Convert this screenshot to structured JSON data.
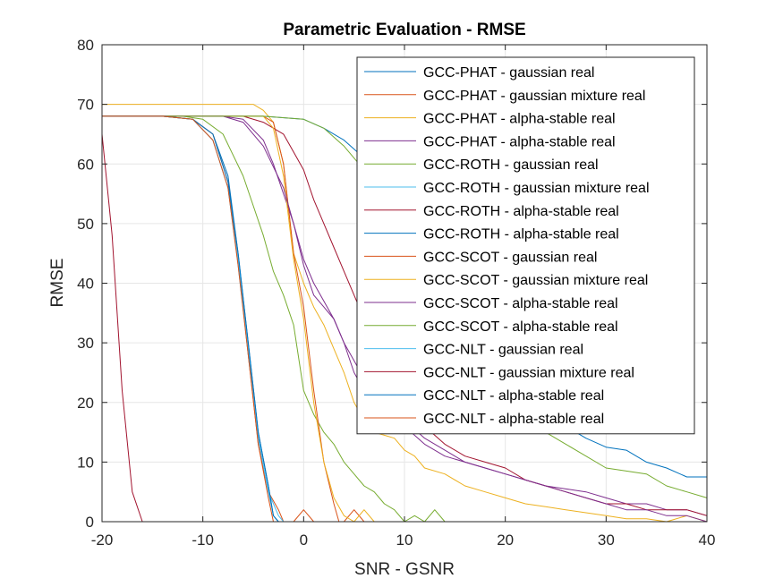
{
  "chart_data": {
    "type": "line",
    "title": "Parametric Evaluation - RMSE",
    "xlabel": "SNR - GSNR",
    "ylabel": "RMSE",
    "xlim": [
      -20,
      40
    ],
    "ylim": [
      0,
      80
    ],
    "xticks": [
      -20,
      -10,
      0,
      10,
      20,
      30,
      40
    ],
    "yticks": [
      0,
      10,
      20,
      30,
      40,
      50,
      60,
      70,
      80
    ],
    "grid": true,
    "legend_position": "top-right",
    "series": [
      {
        "name": "GCC-PHAT - gaussian real",
        "color": "#0072BD",
        "points": [
          [
            -20,
            68
          ],
          [
            -14,
            68
          ],
          [
            -11,
            67.5
          ],
          [
            -9,
            65
          ],
          [
            -7.5,
            58
          ],
          [
            -6.5,
            45
          ],
          [
            -5.5,
            30
          ],
          [
            -4.5,
            15
          ],
          [
            -3.5,
            6
          ],
          [
            -3,
            1
          ],
          [
            -2.5,
            0
          ],
          [
            40,
            0
          ]
        ]
      },
      {
        "name": "GCC-PHAT - gaussian mixture real",
        "color": "#D95319",
        "points": [
          [
            -20,
            68
          ],
          [
            -14,
            68
          ],
          [
            -11,
            67.5
          ],
          [
            -9,
            65
          ],
          [
            -7.5,
            57
          ],
          [
            -6.5,
            44
          ],
          [
            -5.5,
            28
          ],
          [
            -4.5,
            13
          ],
          [
            -3.5,
            5
          ],
          [
            -2.5,
            2
          ],
          [
            -2,
            0
          ],
          [
            -1,
            0
          ],
          [
            0,
            2
          ],
          [
            1,
            0
          ],
          [
            40,
            0
          ]
        ]
      },
      {
        "name": "GCC-PHAT - alpha-stable real",
        "color": "#EDB120",
        "points": [
          [
            -20,
            70
          ],
          [
            -5,
            70
          ],
          [
            -4,
            69
          ],
          [
            -3,
            67
          ],
          [
            -2,
            60
          ],
          [
            -1,
            45
          ],
          [
            0,
            40
          ],
          [
            1,
            36
          ],
          [
            2,
            33
          ],
          [
            3,
            29
          ],
          [
            4,
            25
          ],
          [
            5,
            20
          ],
          [
            6,
            17
          ],
          [
            7,
            15
          ],
          [
            8,
            14.5
          ],
          [
            9,
            14
          ],
          [
            10,
            12
          ],
          [
            11,
            11
          ],
          [
            12,
            9
          ],
          [
            14,
            8
          ],
          [
            16,
            6
          ],
          [
            18,
            5
          ],
          [
            20,
            4
          ],
          [
            22,
            3
          ],
          [
            24,
            2.5
          ],
          [
            26,
            2
          ],
          [
            28,
            1.5
          ],
          [
            30,
            1
          ],
          [
            32,
            0.5
          ],
          [
            34,
            0.5
          ],
          [
            36,
            0
          ],
          [
            38,
            1
          ],
          [
            40,
            0
          ]
        ]
      },
      {
        "name": "GCC-PHAT - alpha-stable real",
        "color": "#7E2F8E",
        "points": [
          [
            -20,
            68
          ],
          [
            -8,
            68
          ],
          [
            -6,
            67.5
          ],
          [
            -4,
            64
          ],
          [
            -3,
            60
          ],
          [
            -2,
            55
          ],
          [
            -1,
            50
          ],
          [
            0,
            43
          ],
          [
            1,
            38
          ],
          [
            2,
            36
          ],
          [
            3,
            34
          ],
          [
            4,
            30
          ],
          [
            5,
            25
          ],
          [
            6,
            22
          ],
          [
            7,
            20
          ],
          [
            8,
            18
          ],
          [
            10,
            16
          ],
          [
            12,
            13
          ],
          [
            14,
            11
          ],
          [
            16,
            10
          ],
          [
            18,
            9
          ],
          [
            20,
            8
          ],
          [
            22,
            7
          ],
          [
            24,
            6
          ],
          [
            26,
            5.5
          ],
          [
            28,
            5
          ],
          [
            30,
            4
          ],
          [
            32,
            3
          ],
          [
            34,
            3
          ],
          [
            36,
            2
          ],
          [
            38,
            2
          ],
          [
            40,
            1
          ]
        ]
      },
      {
        "name": "GCC-ROTH - gaussian real",
        "color": "#77AC30",
        "points": [
          [
            -20,
            68
          ],
          [
            -12,
            68
          ],
          [
            -10,
            67.5
          ],
          [
            -8,
            65
          ],
          [
            -6,
            58
          ],
          [
            -5,
            53
          ],
          [
            -4,
            48
          ],
          [
            -3,
            42
          ],
          [
            -2,
            38
          ],
          [
            -1,
            33
          ],
          [
            0,
            22
          ],
          [
            1,
            18
          ],
          [
            2,
            15
          ],
          [
            3,
            13
          ],
          [
            4,
            10
          ],
          [
            5,
            8
          ],
          [
            6,
            6
          ],
          [
            7,
            5
          ],
          [
            8,
            3
          ],
          [
            9,
            2
          ],
          [
            10,
            0
          ],
          [
            11,
            1
          ],
          [
            12,
            0
          ],
          [
            13,
            2
          ],
          [
            14,
            0
          ],
          [
            40,
            0
          ]
        ]
      },
      {
        "name": "GCC-ROTH - gaussian mixture real",
        "color": "#4DBEEE",
        "points": [
          [
            -20,
            68
          ],
          [
            -14,
            68
          ],
          [
            -11,
            67.5
          ],
          [
            -9,
            64
          ],
          [
            -7.5,
            56
          ],
          [
            -6.5,
            43
          ],
          [
            -5.5,
            28
          ],
          [
            -4.5,
            14
          ],
          [
            -3.5,
            5
          ],
          [
            -2.5,
            1
          ],
          [
            -2,
            0
          ],
          [
            40,
            0
          ]
        ]
      },
      {
        "name": "GCC-ROTH - alpha-stable real",
        "color": "#A2142F",
        "points": [
          [
            -20,
            68
          ],
          [
            -6,
            68
          ],
          [
            -4,
            67
          ],
          [
            -2,
            65
          ],
          [
            -1,
            62
          ],
          [
            0,
            59
          ],
          [
            1,
            54
          ],
          [
            2,
            50
          ],
          [
            3,
            46
          ],
          [
            4,
            42
          ],
          [
            5,
            38
          ],
          [
            6,
            34
          ],
          [
            7,
            30
          ],
          [
            8,
            26
          ],
          [
            9,
            23
          ],
          [
            10,
            20
          ],
          [
            12,
            16
          ],
          [
            14,
            13
          ],
          [
            16,
            11
          ],
          [
            18,
            10
          ],
          [
            20,
            9
          ],
          [
            22,
            7
          ],
          [
            24,
            6
          ],
          [
            26,
            5
          ],
          [
            28,
            4
          ],
          [
            30,
            3
          ],
          [
            32,
            3
          ],
          [
            34,
            2
          ],
          [
            36,
            2
          ],
          [
            38,
            2
          ],
          [
            40,
            1
          ]
        ]
      },
      {
        "name": "GCC-ROTH - alpha-stable real",
        "color": "#0072BD",
        "points": [
          [
            -20,
            68
          ],
          [
            -4,
            68
          ],
          [
            0,
            67.5
          ],
          [
            2,
            66
          ],
          [
            4,
            64
          ],
          [
            6,
            61
          ],
          [
            8,
            55
          ],
          [
            10,
            46
          ],
          [
            12,
            38
          ],
          [
            14,
            30
          ],
          [
            16,
            25
          ],
          [
            18,
            22
          ],
          [
            20,
            20
          ],
          [
            22,
            18
          ],
          [
            24,
            17
          ],
          [
            26,
            16
          ],
          [
            28,
            14
          ],
          [
            30,
            12.5
          ],
          [
            32,
            12
          ],
          [
            34,
            10
          ],
          [
            36,
            9
          ],
          [
            38,
            7.5
          ],
          [
            40,
            7.5
          ]
        ]
      },
      {
        "name": "GCC-SCOT - gaussian real",
        "color": "#D95319",
        "points": [
          [
            -20,
            68
          ],
          [
            -4,
            68
          ],
          [
            -3,
            67
          ],
          [
            -2,
            60
          ],
          [
            -1,
            45
          ],
          [
            0,
            36
          ],
          [
            1,
            22
          ],
          [
            2,
            10
          ],
          [
            3,
            3
          ],
          [
            3.5,
            0
          ],
          [
            4,
            0
          ],
          [
            5,
            2
          ],
          [
            6,
            0
          ],
          [
            40,
            0
          ]
        ]
      },
      {
        "name": "GCC-SCOT - gaussian mixture real",
        "color": "#EDB120",
        "points": [
          [
            -20,
            68
          ],
          [
            -4,
            68
          ],
          [
            -3,
            66
          ],
          [
            -2,
            58
          ],
          [
            -1,
            44
          ],
          [
            0,
            34
          ],
          [
            1,
            20
          ],
          [
            2,
            10
          ],
          [
            3,
            4
          ],
          [
            4,
            1
          ],
          [
            5,
            0
          ],
          [
            6,
            2
          ],
          [
            7,
            0
          ],
          [
            40,
            0
          ]
        ]
      },
      {
        "name": "GCC-SCOT - alpha-stable real",
        "color": "#7E2F8E",
        "points": [
          [
            -20,
            68
          ],
          [
            -8,
            68
          ],
          [
            -6,
            67
          ],
          [
            -4,
            63
          ],
          [
            -2,
            56
          ],
          [
            -1,
            50
          ],
          [
            0,
            44
          ],
          [
            1,
            40
          ],
          [
            2,
            37
          ],
          [
            3,
            34
          ],
          [
            4,
            30
          ],
          [
            5,
            27
          ],
          [
            6,
            24
          ],
          [
            8,
            20
          ],
          [
            10,
            17
          ],
          [
            12,
            14
          ],
          [
            14,
            12
          ],
          [
            16,
            10
          ],
          [
            18,
            9
          ],
          [
            20,
            8
          ],
          [
            22,
            7
          ],
          [
            24,
            6
          ],
          [
            26,
            5
          ],
          [
            28,
            4
          ],
          [
            30,
            3
          ],
          [
            32,
            2
          ],
          [
            34,
            2
          ],
          [
            36,
            1
          ],
          [
            38,
            1
          ],
          [
            40,
            0
          ]
        ]
      },
      {
        "name": "GCC-SCOT - alpha-stable real",
        "color": "#77AC30",
        "points": [
          [
            -20,
            68
          ],
          [
            -4,
            68
          ],
          [
            0,
            67.5
          ],
          [
            2,
            66
          ],
          [
            4,
            63
          ],
          [
            6,
            59
          ],
          [
            8,
            52
          ],
          [
            10,
            44
          ],
          [
            12,
            36
          ],
          [
            14,
            29
          ],
          [
            16,
            24
          ],
          [
            18,
            21
          ],
          [
            20,
            19
          ],
          [
            22,
            17
          ],
          [
            24,
            15
          ],
          [
            26,
            13
          ],
          [
            28,
            11
          ],
          [
            30,
            9
          ],
          [
            32,
            8.5
          ],
          [
            34,
            8
          ],
          [
            36,
            6
          ],
          [
            38,
            5
          ],
          [
            40,
            4
          ]
        ]
      },
      {
        "name": "GCC-NLT - gaussian real",
        "color": "#4DBEEE",
        "points": [
          [
            -20,
            68
          ],
          [
            -14,
            68
          ],
          [
            -11,
            67.5
          ],
          [
            -9,
            64
          ],
          [
            -7.5,
            56
          ],
          [
            -6.5,
            44
          ],
          [
            -5.5,
            29
          ],
          [
            -4.5,
            14
          ],
          [
            -3.5,
            5
          ],
          [
            -3,
            1
          ],
          [
            -2.5,
            0
          ],
          [
            40,
            0
          ]
        ]
      },
      {
        "name": "GCC-NLT - gaussian mixture real",
        "color": "#A2142F",
        "points": [
          [
            -20,
            65
          ],
          [
            -19,
            48
          ],
          [
            -18,
            22
          ],
          [
            -17,
            5
          ],
          [
            -16,
            0
          ],
          [
            40,
            0
          ]
        ]
      },
      {
        "name": "GCC-NLT - alpha-stable real",
        "color": "#0072BD",
        "points": [
          [
            -20,
            68
          ],
          [
            -14,
            68
          ],
          [
            -11,
            67.5
          ],
          [
            -9,
            65
          ],
          [
            -7.5,
            57
          ],
          [
            -6.5,
            45
          ],
          [
            -5.5,
            30
          ],
          [
            -4.5,
            15
          ],
          [
            -3.5,
            6
          ],
          [
            -3,
            1
          ],
          [
            -2.5,
            0
          ],
          [
            40,
            0
          ]
        ]
      },
      {
        "name": "GCC-NLT - alpha-stable real",
        "color": "#D95319",
        "points": [
          [
            -20,
            68
          ],
          [
            -14,
            68
          ],
          [
            -11,
            67.5
          ],
          [
            -9,
            64
          ],
          [
            -7.5,
            56
          ],
          [
            -6.5,
            43
          ],
          [
            -5.5,
            28
          ],
          [
            -4.5,
            13
          ],
          [
            -3.5,
            4
          ],
          [
            -3,
            0
          ],
          [
            40,
            0
          ]
        ]
      }
    ]
  }
}
